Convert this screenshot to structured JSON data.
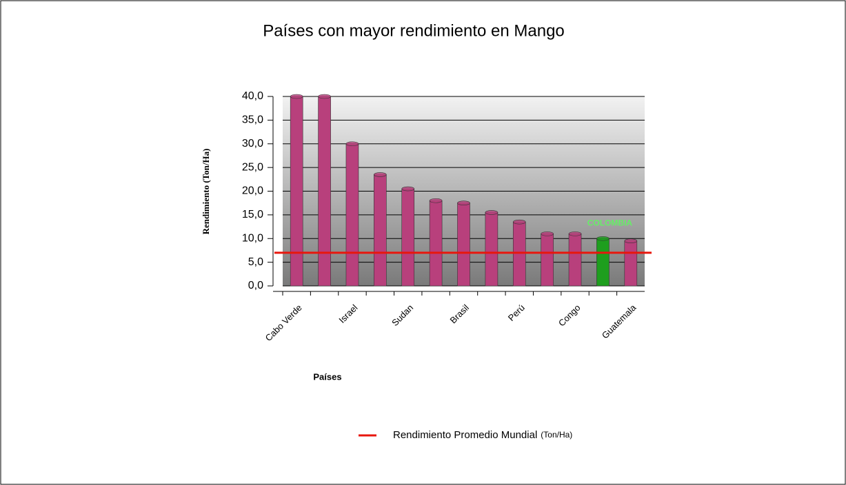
{
  "chart_data": {
    "type": "bar",
    "title": "Países con mayor rendimiento en Mango",
    "y_label": "Rendimiento (Ton/Ha)",
    "x_label": "Países",
    "categories": [
      "Cabo Verde",
      null,
      "Israel",
      null,
      "Sudan",
      null,
      "Brasil",
      null,
      "Perú",
      null,
      "Congo",
      null,
      "Guatemala"
    ],
    "values": [
      40,
      40,
      30,
      23.5,
      20.5,
      18,
      17.5,
      15.5,
      13.5,
      11,
      11,
      10,
      9.5
    ],
    "colors": [
      "#b8407c",
      "#b8407c",
      "#b8407c",
      "#b8407c",
      "#b8407c",
      "#b8407c",
      "#b8407c",
      "#b8407c",
      "#b8407c",
      "#b8407c",
      "#b8407c",
      "#1e9e1e",
      "#b8407c"
    ],
    "annotation": "COLOMBIA",
    "annotation_color": "#66ee66",
    "reference_line": {
      "name": "Rendimiento Promedio Mundial",
      "unit": "(Ton/Ha)",
      "value": 7,
      "color": "#e8160c"
    },
    "ylim": [
      0,
      40
    ],
    "yticks": [
      {
        "value": 0,
        "label": "0,0"
      },
      {
        "value": 5,
        "label": "5,0"
      },
      {
        "value": 10,
        "label": "10,0"
      },
      {
        "value": 15,
        "label": "15,0"
      },
      {
        "value": 20,
        "label": "20,0"
      },
      {
        "value": 25,
        "label": "25,0"
      },
      {
        "value": 30,
        "label": "30,0"
      },
      {
        "value": 35,
        "label": "35,0"
      },
      {
        "value": 40,
        "label": "40,0"
      }
    ],
    "grid": true
  }
}
